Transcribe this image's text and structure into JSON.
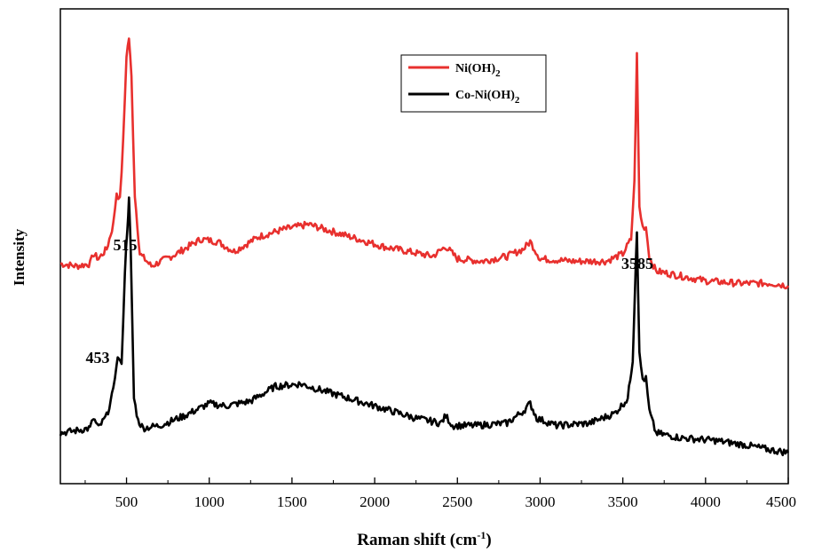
{
  "chart_data": {
    "type": "line",
    "xlabel": "Raman shift (cm",
    "xlabel_sup": "-1",
    "xlabel_end": ")",
    "ylabel": "Intensity",
    "xlim": [
      100,
      4500
    ],
    "x_ticks": [
      500,
      1000,
      1500,
      2000,
      2500,
      3000,
      3500,
      4000,
      4500
    ],
    "y_ticks_shown": false,
    "legend": {
      "placement": "top-right"
    },
    "series": [
      {
        "name": "Ni(OH)",
        "name_sub": "2",
        "color": "#e8302e",
        "x": [
          100,
          200,
          280,
          300,
          330,
          380,
          420,
          440,
          460,
          480,
          500,
          515,
          530,
          550,
          580,
          650,
          800,
          950,
          1050,
          1150,
          1300,
          1450,
          1600,
          1750,
          1900,
          2050,
          2200,
          2350,
          2430,
          2500,
          2650,
          2800,
          2900,
          2940,
          3000,
          3200,
          3400,
          3500,
          3550,
          3570,
          3585,
          3600,
          3620,
          3640,
          3660,
          3700,
          3850,
          4000,
          4200,
          4400,
          4500
        ],
        "y": [
          7.7,
          7.6,
          7.7,
          8.1,
          7.9,
          8.3,
          9.3,
          10.6,
          10.3,
          12.7,
          16.2,
          16.9,
          15.3,
          10.5,
          8.1,
          7.6,
          8.1,
          8.7,
          8.6,
          8.2,
          8.8,
          9.1,
          9.3,
          9.0,
          8.7,
          8.4,
          8.2,
          8.0,
          8.4,
          7.9,
          7.8,
          8.0,
          8.3,
          8.6,
          7.9,
          7.8,
          7.8,
          8.1,
          8.7,
          11.0,
          16.2,
          10.0,
          9.2,
          9.2,
          8.0,
          7.4,
          7.2,
          7.0,
          6.9,
          6.9,
          6.8
        ]
      },
      {
        "name": "Co-Ni(OH)",
        "name_sub": "2",
        "color": "#000000",
        "x": [
          100,
          200,
          280,
          300,
          330,
          380,
          420,
          440,
          453,
          470,
          490,
          505,
          515,
          525,
          545,
          570,
          600,
          700,
          850,
          1000,
          1100,
          1250,
          1400,
          1550,
          1650,
          1800,
          1950,
          2100,
          2250,
          2400,
          2430,
          2470,
          2600,
          2800,
          2900,
          2940,
          2980,
          3100,
          3300,
          3450,
          3530,
          3560,
          3575,
          3585,
          3600,
          3620,
          3640,
          3660,
          3700,
          3850,
          4050,
          4250,
          4400,
          4500
        ],
        "y": [
          0.8,
          0.9,
          1.0,
          1.4,
          1.0,
          1.5,
          2.5,
          3.7,
          3.9,
          3.5,
          7.4,
          9.2,
          10.3,
          8.3,
          2.2,
          1.3,
          1.0,
          1.1,
          1.5,
          2.0,
          1.9,
          2.1,
          2.7,
          2.8,
          2.6,
          2.3,
          2.0,
          1.7,
          1.4,
          1.2,
          1.5,
          1.1,
          1.1,
          1.2,
          1.7,
          2.0,
          1.4,
          1.1,
          1.2,
          1.6,
          2.2,
          3.8,
          7.0,
          9.1,
          4.0,
          3.0,
          3.0,
          1.7,
          0.8,
          0.6,
          0.5,
          0.3,
          0.1,
          0.0
        ]
      }
    ],
    "annotations": [
      {
        "text": "453",
        "x": 453
      },
      {
        "text": "515",
        "x": 515
      },
      {
        "text": "3585",
        "x": 3585
      }
    ]
  }
}
